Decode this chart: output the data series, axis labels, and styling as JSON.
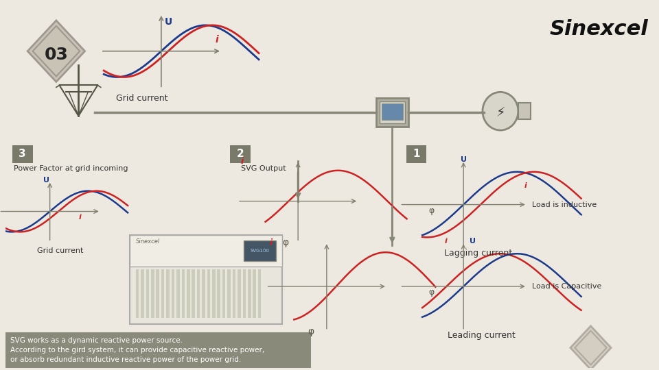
{
  "bg_color": "#EDE8E0",
  "title": "Sinexcel",
  "bottom_text": "SVG works as a dynamic reactive power source.\nAccording to the gird system, it can provide capacitive reactive power,\nor absorb redundant inductive reactive power of the power grid.",
  "bottom_box_color": "#8A8A7A",
  "bottom_text_color": "#FFFFFF",
  "badge_text": "03",
  "label_grid_current_top": "Grid current",
  "label_grid_current_bottom": "Grid current",
  "label_power_factor": "Power Factor at grid incoming",
  "label_svg_output": "SVG Output",
  "label_load_inductive": "Load is inductive",
  "label_lagging": "Lagging current",
  "label_load_capacitive": "Load is Capacitive",
  "label_leading": "Leading current",
  "line_color_blue": "#1C3A8C",
  "line_color_red": "#CC2222",
  "arrow_color": "#808070",
  "connector_color": "#888878",
  "phi_color": "#555545"
}
